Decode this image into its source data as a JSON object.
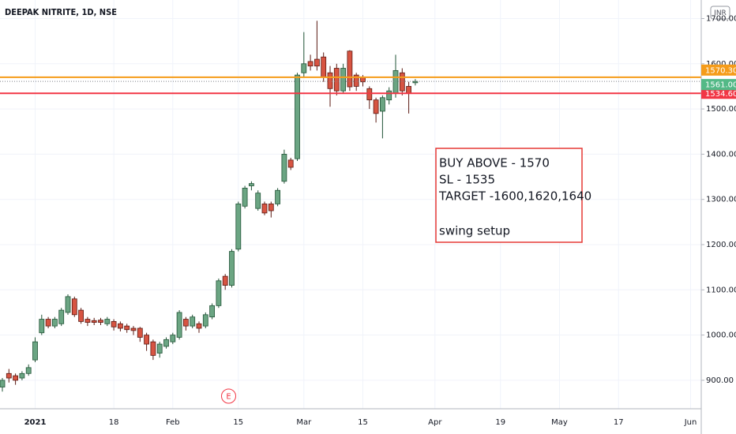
{
  "chart_data": {
    "type": "candlestick",
    "title": "DEEPAK NITRITE, 1D, NSE",
    "currency": "INR",
    "categories": [
      null,
      null,
      null,
      null,
      null,
      "2021",
      null,
      null,
      null,
      null,
      null,
      null,
      null,
      null,
      null,
      null,
      null,
      "18",
      null,
      null,
      null,
      null,
      null,
      null,
      null,
      null,
      "Feb",
      null,
      null,
      null,
      null,
      null,
      null,
      null,
      null,
      null,
      "15",
      null,
      null,
      null,
      null,
      null,
      null,
      null,
      null,
      null,
      "Mar",
      null,
      null,
      null,
      null,
      null,
      null,
      null,
      null,
      "15",
      null,
      null,
      null,
      null,
      null,
      null,
      null,
      null,
      null,
      null,
      "Apr",
      null,
      null,
      null,
      null,
      null,
      null,
      null,
      null,
      null,
      "19",
      null,
      null,
      null,
      null,
      null,
      null,
      null,
      null,
      "May",
      null,
      null,
      null,
      null,
      null,
      null,
      null,
      null,
      "17",
      null,
      null,
      null,
      null,
      null,
      null,
      null,
      null,
      null,
      null,
      "Jun",
      null
    ],
    "open": [
      885,
      915,
      910,
      905,
      915,
      945,
      1005,
      1035,
      1020,
      1025,
      1050,
      1080,
      1055,
      1035,
      1032,
      1033,
      1025,
      1030,
      1025,
      1020,
      1015,
      1015,
      1000,
      985,
      960,
      975,
      985,
      995,
      1035,
      1020,
      1025,
      1020,
      1040,
      1065,
      1130,
      1110,
      1190,
      1285,
      1330,
      1280,
      1290,
      1290,
      1290,
      1340,
      1387,
      1390,
      1580,
      1605,
      1610,
      1615,
      1580,
      1590,
      1540,
      1628,
      1575,
      1570,
      1545,
      1520,
      1495,
      1520,
      1535,
      1580,
      1550,
      1558,
      null,
      null,
      null,
      null,
      null,
      null,
      null,
      null,
      null,
      null,
      null,
      null,
      null,
      null,
      null,
      null,
      null,
      null,
      null,
      null,
      null,
      null,
      null,
      null,
      null,
      null,
      null,
      null,
      null,
      null,
      null,
      null,
      null,
      null,
      null,
      null,
      null,
      null,
      null,
      null,
      null,
      null,
      null
    ],
    "high": [
      905,
      925,
      915,
      920,
      935,
      995,
      1045,
      1040,
      1040,
      1060,
      1090,
      1085,
      1060,
      1040,
      1038,
      1038,
      1040,
      1035,
      1030,
      1025,
      1020,
      1018,
      1005,
      990,
      985,
      995,
      1005,
      1055,
      1040,
      1045,
      1030,
      1050,
      1070,
      1125,
      1135,
      1190,
      1295,
      1330,
      1340,
      1320,
      1295,
      1295,
      1325,
      1410,
      1392,
      1580,
      1670,
      1620,
      1695,
      1625,
      1595,
      1600,
      1600,
      1630,
      1580,
      1575,
      1550,
      1525,
      1530,
      1548,
      1620,
      1590,
      1560,
      1566,
      null,
      null,
      null,
      null,
      null,
      null,
      null,
      null,
      null,
      null,
      null,
      null,
      null,
      null,
      null,
      null,
      null,
      null,
      null,
      null,
      null,
      null,
      null,
      null,
      null,
      null,
      null,
      null,
      null,
      null,
      null,
      null,
      null,
      null,
      null,
      null,
      null,
      null,
      null,
      null,
      null,
      null,
      null
    ],
    "low": [
      875,
      895,
      890,
      900,
      910,
      940,
      1000,
      1015,
      1015,
      1020,
      1045,
      1040,
      1025,
      1020,
      1022,
      1022,
      1020,
      1010,
      1008,
      1005,
      1000,
      985,
      965,
      945,
      950,
      970,
      980,
      990,
      1010,
      1015,
      1005,
      1015,
      1035,
      1060,
      1100,
      1105,
      1185,
      1280,
      1320,
      1275,
      1265,
      1260,
      1285,
      1335,
      1365,
      1385,
      1570,
      1585,
      1585,
      1560,
      1505,
      1530,
      1535,
      1540,
      1540,
      1550,
      1500,
      1470,
      1435,
      1510,
      1525,
      1530,
      1490,
      1552,
      null,
      null,
      null,
      null,
      null,
      null,
      null,
      null,
      null,
      null,
      null,
      null,
      null,
      null,
      null,
      null,
      null,
      null,
      null,
      null,
      null,
      null,
      null,
      null,
      null,
      null,
      null,
      null,
      null,
      null,
      null,
      null,
      null,
      null,
      null,
      null,
      null,
      null,
      null,
      null,
      null,
      null,
      null
    ],
    "close": [
      900,
      905,
      900,
      915,
      928,
      985,
      1035,
      1020,
      1035,
      1055,
      1085,
      1045,
      1030,
      1028,
      1028,
      1028,
      1035,
      1018,
      1015,
      1012,
      1010,
      995,
      980,
      955,
      980,
      990,
      1000,
      1050,
      1020,
      1040,
      1015,
      1045,
      1065,
      1120,
      1110,
      1185,
      1290,
      1325,
      1335,
      1314,
      1270,
      1275,
      1320,
      1400,
      1371,
      1575,
      1600,
      1595,
      1595,
      1570,
      1545,
      1540,
      1590,
      1549,
      1550,
      1560,
      1520,
      1490,
      1525,
      1540,
      1585,
      1540,
      1535,
      1561,
      null,
      null,
      null,
      null,
      null,
      null,
      null,
      null,
      null,
      null,
      null,
      null,
      null,
      null,
      null,
      null,
      null,
      null,
      null,
      null,
      null,
      null,
      null,
      null,
      null,
      null,
      null,
      null,
      null,
      null,
      null,
      null,
      null,
      null,
      null,
      null,
      null,
      null,
      null,
      null,
      null,
      null,
      null
    ],
    "up_color": "#6ba583",
    "down_color": "#d75442",
    "ylim": [
      837,
      1741
    ],
    "yticks": [
      {
        "value": 900,
        "label": "900.00"
      },
      {
        "value": 1000,
        "label": "1000.00"
      },
      {
        "value": 1100,
        "label": "1100.00"
      },
      {
        "value": 1200,
        "label": "1200.00"
      },
      {
        "value": 1300,
        "label": "1300.00"
      },
      {
        "value": 1400,
        "label": "1400.00"
      },
      {
        "value": 1500,
        "label": "1500.00"
      },
      {
        "value": 1600,
        "label": "1600.00"
      },
      {
        "value": 1700,
        "label": "1700.00"
      }
    ],
    "grid": true,
    "price_lines": [
      {
        "value": 1570.3,
        "label": "1570.30",
        "color": "#f59c1a"
      },
      {
        "value": 1534.6,
        "label": "1534.60",
        "color": "#f23645"
      }
    ],
    "last_price": {
      "value": 1561,
      "label": "1561.00",
      "color": "#53b987"
    },
    "events": [
      {
        "index": 35,
        "label": "E"
      }
    ],
    "annotation": {
      "lines": [
        "BUY ABOVE - 1570",
        "SL - 1535",
        "TARGET -1600,1620,1640",
        "swing setup"
      ],
      "color": "#e53935"
    }
  }
}
